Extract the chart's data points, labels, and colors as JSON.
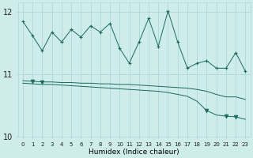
{
  "xlabel": "Humidex (Indice chaleur)",
  "background_color": "#cdecea",
  "grid_color": "#add8d4",
  "line_color": "#1a6b5a",
  "x": [
    0,
    1,
    2,
    3,
    4,
    5,
    6,
    7,
    8,
    9,
    10,
    11,
    12,
    13,
    14,
    15,
    16,
    17,
    18,
    19,
    20,
    21,
    22,
    23
  ],
  "series1": [
    11.85,
    11.62,
    11.38,
    11.68,
    11.52,
    11.72,
    11.6,
    11.78,
    11.68,
    11.82,
    11.42,
    11.18,
    11.52,
    11.9,
    11.45,
    12.02,
    11.52,
    11.1,
    11.18,
    11.22,
    11.1,
    11.1,
    11.35,
    11.05
  ],
  "series2": [
    10.9,
    10.89,
    10.88,
    10.88,
    10.87,
    10.87,
    10.86,
    10.86,
    10.85,
    10.85,
    10.84,
    10.84,
    10.83,
    10.82,
    10.81,
    10.8,
    10.79,
    10.78,
    10.76,
    10.73,
    10.68,
    10.64,
    10.64,
    10.6
  ],
  "series3": [
    10.86,
    10.85,
    10.84,
    10.84,
    10.83,
    10.82,
    10.81,
    10.8,
    10.79,
    10.78,
    10.77,
    10.76,
    10.75,
    10.74,
    10.73,
    10.71,
    10.68,
    10.65,
    10.57,
    10.42,
    10.35,
    10.33,
    10.32,
    10.28
  ],
  "ylim": [
    10.0,
    12.15
  ],
  "yticks": [
    10,
    11,
    12
  ],
  "xtick_labels": [
    "0",
    "1",
    "2",
    "3",
    "4",
    "5",
    "6",
    "7",
    "8",
    "9",
    "10",
    "11",
    "12",
    "13",
    "14",
    "15",
    "16",
    "17",
    "18",
    "19",
    "20",
    "21",
    "22",
    "23"
  ],
  "s1_markers": [
    0,
    1,
    2,
    3,
    4,
    5,
    6,
    7,
    8,
    9,
    10,
    11,
    12,
    13,
    14,
    15,
    16,
    17,
    18,
    19,
    20,
    21,
    22,
    23
  ],
  "s2_tri_markers": [
    1,
    2
  ],
  "s3_tri_markers": [
    19,
    21,
    22
  ]
}
